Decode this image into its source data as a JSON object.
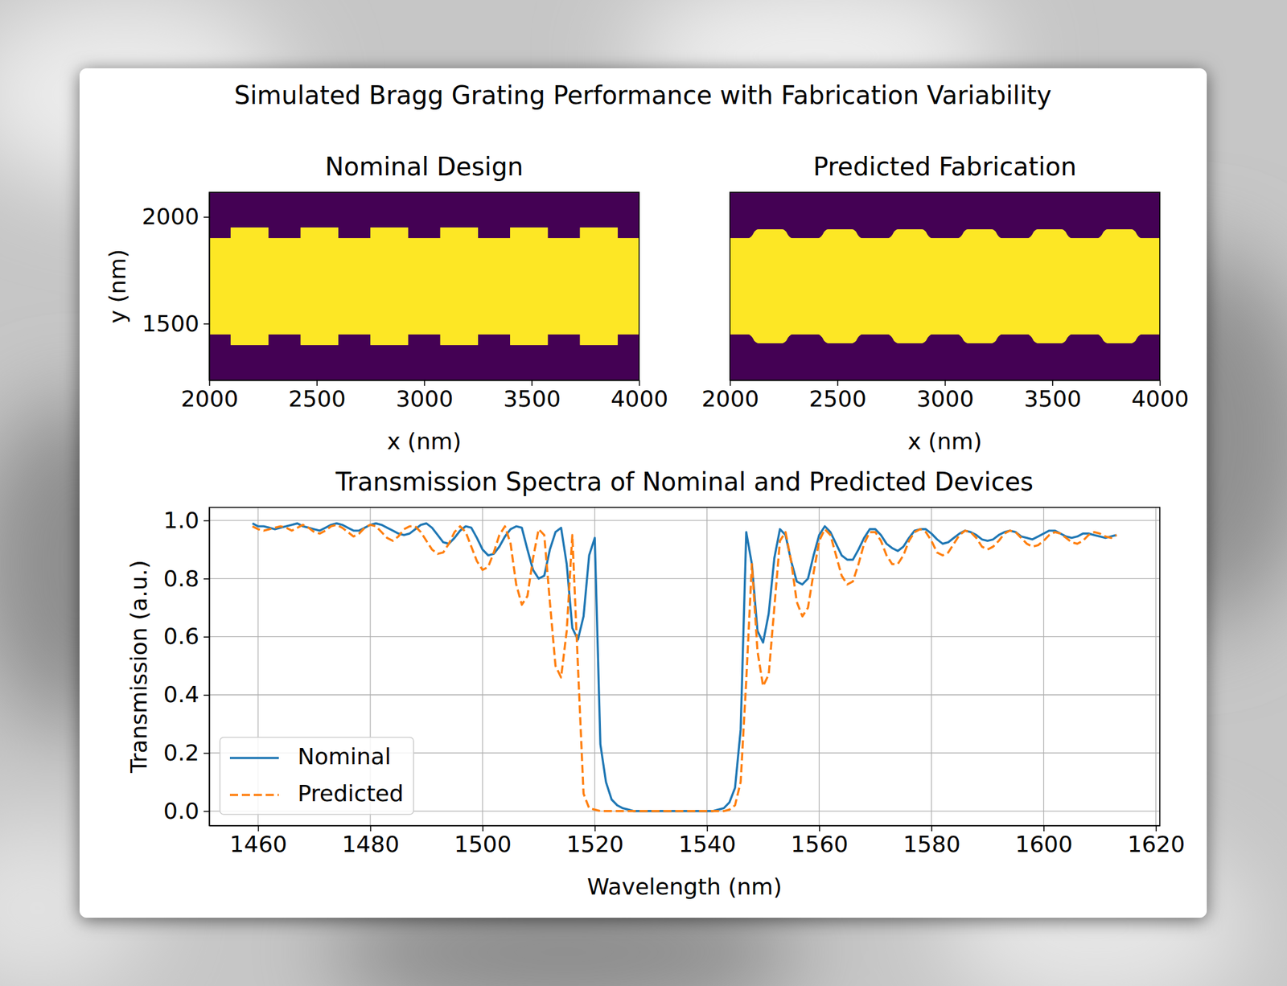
{
  "title": "Simulated Bragg Grating Performance with Fabrication Variability",
  "chart_data": [
    {
      "type": "geometry",
      "title": "Nominal Design",
      "xlabel": "x (nm)",
      "ylabel": "y (nm)",
      "xlim": [
        2000,
        4000
      ],
      "ylim": [
        1235,
        2115
      ],
      "xticks": [
        2000,
        2500,
        3000,
        3500,
        4000
      ],
      "yticks": [
        1500,
        2000
      ],
      "color": "#fde725",
      "line_style": "sharp",
      "x": [
        2000,
        2100,
        2100,
        2275,
        2275,
        2425,
        2425,
        2600,
        2600,
        2750,
        2750,
        2925,
        2925,
        3075,
        3075,
        3250,
        3250,
        3400,
        3400,
        3575,
        3575,
        3725,
        3725,
        3900,
        3900,
        4000
      ],
      "upper": [
        1900,
        1900,
        1950,
        1950,
        1900,
        1900,
        1950,
        1950,
        1900,
        1900,
        1950,
        1950,
        1900,
        1900,
        1950,
        1950,
        1900,
        1900,
        1950,
        1950,
        1900,
        1900,
        1950,
        1950,
        1900,
        1900
      ],
      "lower": [
        1450,
        1450,
        1400,
        1400,
        1450,
        1450,
        1400,
        1400,
        1450,
        1450,
        1400,
        1400,
        1450,
        1450,
        1400,
        1400,
        1450,
        1450,
        1400,
        1400,
        1450,
        1450,
        1400,
        1400,
        1450,
        1450
      ]
    },
    {
      "type": "geometry",
      "title": "Predicted Fabrication",
      "xlabel": "x (nm)",
      "xlim": [
        2000,
        4000
      ],
      "ylim": [
        1235,
        2115
      ],
      "xticks": [
        2000,
        2500,
        3000,
        3500,
        4000
      ],
      "tick_labels": "x",
      "color": "#fde725",
      "line_style": "smooth",
      "x": [
        2000,
        2085,
        2105,
        2115,
        2135,
        2240,
        2260,
        2270,
        2290,
        2410,
        2430,
        2440,
        2460,
        2565,
        2585,
        2595,
        2615,
        2735,
        2755,
        2765,
        2785,
        2890,
        2910,
        2920,
        2940,
        3060,
        3080,
        3090,
        3110,
        3215,
        3235,
        3245,
        3265,
        3385,
        3405,
        3415,
        3435,
        3540,
        3560,
        3570,
        3590,
        3710,
        3730,
        3740,
        3760,
        3865,
        3885,
        3895,
        3915,
        4000
      ],
      "upper": [
        1900,
        1900,
        1915,
        1932,
        1942,
        1942,
        1932,
        1915,
        1900,
        1900,
        1915,
        1932,
        1942,
        1942,
        1932,
        1915,
        1900,
        1900,
        1915,
        1932,
        1942,
        1942,
        1932,
        1915,
        1900,
        1900,
        1915,
        1932,
        1942,
        1942,
        1932,
        1915,
        1900,
        1900,
        1915,
        1932,
        1942,
        1942,
        1932,
        1915,
        1900,
        1900,
        1915,
        1932,
        1942,
        1942,
        1932,
        1915,
        1900,
        1900
      ],
      "lower": [
        1450,
        1450,
        1435,
        1418,
        1408,
        1408,
        1418,
        1435,
        1450,
        1450,
        1435,
        1418,
        1408,
        1408,
        1418,
        1435,
        1450,
        1450,
        1435,
        1418,
        1408,
        1408,
        1418,
        1435,
        1450,
        1450,
        1435,
        1418,
        1408,
        1408,
        1418,
        1435,
        1450,
        1450,
        1435,
        1418,
        1408,
        1408,
        1418,
        1435,
        1450,
        1450,
        1435,
        1418,
        1408,
        1408,
        1418,
        1435,
        1450,
        1450
      ]
    },
    {
      "type": "line",
      "title": "Transmission Spectra of Nominal and Predicted Devices",
      "xlabel": "Wavelength (nm)",
      "ylabel": "Transmission (a.u.)",
      "xlim": [
        1451.3,
        1620.7
      ],
      "ylim": [
        -0.05,
        1.045
      ],
      "xticks": [
        1460,
        1480,
        1500,
        1520,
        1540,
        1560,
        1580,
        1600,
        1620
      ],
      "yticks": [
        {
          "value": 0,
          "label": "0.0"
        },
        0.2,
        0.4,
        0.6,
        0.8,
        {
          "value": 1,
          "label": "1.0"
        }
      ],
      "grid": true,
      "legend": "lower left",
      "x": [
        1459,
        1460,
        1461,
        1462,
        1463,
        1464,
        1465,
        1466,
        1467,
        1468,
        1469,
        1470,
        1471,
        1472,
        1473,
        1474,
        1475,
        1476,
        1477,
        1478,
        1479,
        1480,
        1481,
        1482,
        1483,
        1484,
        1485,
        1486,
        1487,
        1488,
        1489,
        1490,
        1491,
        1492,
        1493,
        1494,
        1495,
        1496,
        1497,
        1498,
        1499,
        1500,
        1501,
        1502,
        1503,
        1504,
        1505,
        1506,
        1507,
        1508,
        1509,
        1510,
        1511,
        1512,
        1513,
        1514,
        1515,
        1516,
        1517,
        1518,
        1519,
        1520,
        1521,
        1522,
        1523,
        1524,
        1525,
        1526,
        1527,
        1528,
        1529,
        1530,
        1531,
        1532,
        1533,
        1534,
        1535,
        1536,
        1537,
        1538,
        1539,
        1540,
        1541,
        1542,
        1543,
        1544,
        1545,
        1546,
        1547,
        1548,
        1549,
        1550,
        1551,
        1552,
        1553,
        1554,
        1555,
        1556,
        1557,
        1558,
        1559,
        1560,
        1561,
        1562,
        1563,
        1564,
        1565,
        1566,
        1567,
        1568,
        1569,
        1570,
        1571,
        1572,
        1573,
        1574,
        1575,
        1576,
        1577,
        1578,
        1579,
        1580,
        1581,
        1582,
        1583,
        1584,
        1585,
        1586,
        1587,
        1588,
        1589,
        1590,
        1591,
        1592,
        1593,
        1594,
        1595,
        1596,
        1597,
        1598,
        1599,
        1600,
        1601,
        1602,
        1603,
        1604,
        1605,
        1606,
        1607,
        1608,
        1609,
        1610,
        1611,
        1612,
        1613
      ],
      "series": [
        {
          "name": "Nominal",
          "color": "#1f77b4",
          "line_style": "solid",
          "values": [
            0.99,
            0.98,
            0.98,
            0.975,
            0.97,
            0.975,
            0.98,
            0.985,
            0.99,
            0.98,
            0.975,
            0.97,
            0.965,
            0.975,
            0.985,
            0.99,
            0.985,
            0.975,
            0.965,
            0.965,
            0.975,
            0.985,
            0.99,
            0.985,
            0.975,
            0.965,
            0.955,
            0.95,
            0.955,
            0.97,
            0.985,
            0.99,
            0.975,
            0.95,
            0.925,
            0.92,
            0.94,
            0.965,
            0.98,
            0.975,
            0.94,
            0.9,
            0.88,
            0.885,
            0.91,
            0.945,
            0.97,
            0.98,
            0.975,
            0.9,
            0.83,
            0.8,
            0.81,
            0.9,
            0.96,
            0.975,
            0.85,
            0.63,
            0.59,
            0.67,
            0.88,
            0.94,
            0.23,
            0.1,
            0.04,
            0.02,
            0.01,
            0.005,
            0,
            0,
            0,
            0,
            0,
            0,
            0,
            0,
            0,
            0,
            0,
            0,
            0,
            0,
            0,
            0.005,
            0.01,
            0.03,
            0.08,
            0.28,
            0.96,
            0.85,
            0.62,
            0.58,
            0.68,
            0.87,
            0.97,
            0.95,
            0.86,
            0.79,
            0.78,
            0.8,
            0.88,
            0.95,
            0.98,
            0.96,
            0.92,
            0.88,
            0.865,
            0.865,
            0.9,
            0.94,
            0.97,
            0.97,
            0.95,
            0.92,
            0.905,
            0.895,
            0.91,
            0.94,
            0.965,
            0.97,
            0.97,
            0.955,
            0.935,
            0.92,
            0.925,
            0.94,
            0.955,
            0.965,
            0.96,
            0.95,
            0.935,
            0.93,
            0.935,
            0.95,
            0.96,
            0.965,
            0.96,
            0.945,
            0.94,
            0.935,
            0.945,
            0.955,
            0.965,
            0.965,
            0.955,
            0.945,
            0.94,
            0.945,
            0.955,
            0.955,
            0.95,
            0.945,
            0.94,
            0.945,
            0.95
          ]
        },
        {
          "name": "Predicted",
          "color": "#ff7f0e",
          "line_style": "dashed",
          "values": [
            0.98,
            0.97,
            0.965,
            0.97,
            0.975,
            0.98,
            0.975,
            0.965,
            0.975,
            0.985,
            0.975,
            0.96,
            0.955,
            0.965,
            0.98,
            0.985,
            0.975,
            0.96,
            0.945,
            0.955,
            0.975,
            0.985,
            0.98,
            0.96,
            0.94,
            0.93,
            0.945,
            0.97,
            0.98,
            0.98,
            0.96,
            0.93,
            0.9,
            0.885,
            0.89,
            0.92,
            0.96,
            0.98,
            0.96,
            0.91,
            0.86,
            0.83,
            0.84,
            0.89,
            0.95,
            0.98,
            0.92,
            0.78,
            0.71,
            0.74,
            0.87,
            0.97,
            0.95,
            0.72,
            0.5,
            0.46,
            0.62,
            0.95,
            0.5,
            0.06,
            0.01,
            0.005,
            0,
            0,
            0,
            0,
            0,
            0,
            0,
            0,
            0,
            0,
            0,
            0,
            0,
            0,
            0,
            0,
            0,
            0,
            0,
            0,
            0,
            0,
            0,
            0.005,
            0.02,
            0.1,
            0.45,
            0.85,
            0.55,
            0.43,
            0.47,
            0.7,
            0.93,
            0.96,
            0.86,
            0.72,
            0.67,
            0.7,
            0.82,
            0.93,
            0.97,
            0.95,
            0.88,
            0.81,
            0.78,
            0.79,
            0.85,
            0.92,
            0.96,
            0.96,
            0.93,
            0.88,
            0.85,
            0.85,
            0.88,
            0.93,
            0.96,
            0.97,
            0.96,
            0.93,
            0.89,
            0.88,
            0.89,
            0.92,
            0.95,
            0.965,
            0.96,
            0.94,
            0.91,
            0.9,
            0.91,
            0.93,
            0.955,
            0.965,
            0.96,
            0.94,
            0.92,
            0.91,
            0.915,
            0.93,
            0.95,
            0.96,
            0.955,
            0.94,
            0.925,
            0.92,
            0.93,
            0.95,
            0.96,
            0.955,
            0.945,
            0.94,
            0.95
          ]
        }
      ]
    }
  ]
}
